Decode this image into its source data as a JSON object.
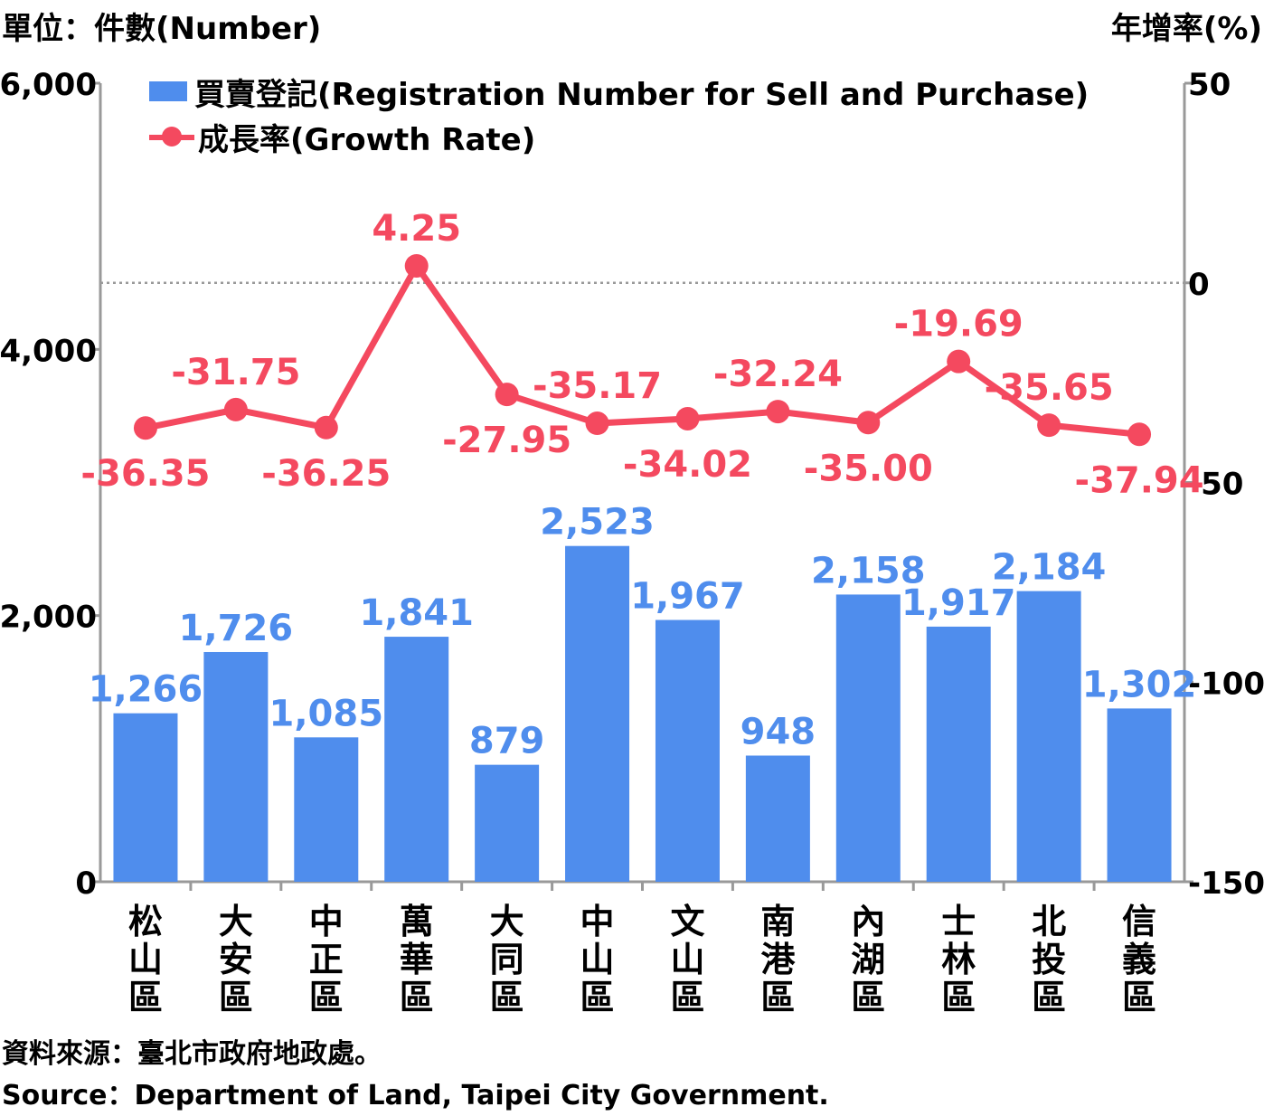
{
  "header": {
    "left_unit": "單位：件數(Number)",
    "right_unit": "年增率(%)"
  },
  "legend": {
    "bar_label": "買賣登記(Registration Number for Sell and Purchase)",
    "line_label": "成長率(Growth Rate)"
  },
  "footer": {
    "source_zh": "資料來源：臺北市政府地政處。",
    "source_en": "Source：Department of Land, Taipei City Government."
  },
  "colors": {
    "bar": "#4f8ded",
    "line": "#f4495f",
    "axis": "#999999",
    "zero_line": "#999999"
  },
  "chart_data": {
    "type": "bar",
    "categories": [
      "松山區",
      "大安區",
      "中正區",
      "萬華區",
      "大同區",
      "中山區",
      "文山區",
      "南港區",
      "內湖區",
      "士林區",
      "北投區",
      "信義區"
    ],
    "series": [
      {
        "name": "買賣登記(Registration Number for Sell and Purchase)",
        "type": "bar",
        "axis": "left",
        "values": [
          1266,
          1726,
          1085,
          1841,
          879,
          2523,
          1967,
          948,
          2158,
          1917,
          2184,
          1302
        ],
        "labels": [
          "1,266",
          "1,726",
          "1,085",
          "1,841",
          "879",
          "2,523",
          "1,967",
          "948",
          "2,158",
          "1,917",
          "2,184",
          "1,302"
        ]
      },
      {
        "name": "成長率(Growth Rate)",
        "type": "line",
        "axis": "right",
        "values": [
          -36.35,
          -31.75,
          -36.25,
          4.25,
          -27.95,
          -35.17,
          -34.02,
          -32.24,
          -35.0,
          -19.69,
          -35.65,
          -37.94
        ],
        "labels": [
          "-36.35",
          "-31.75",
          "-36.25",
          "4.25",
          "-27.95",
          "-35.17",
          "-34.02",
          "-32.24",
          "-35.00",
          "-19.69",
          "-35.65",
          "-37.94"
        ],
        "label_positions": [
          "below",
          "above",
          "below",
          "above",
          "below",
          "above",
          "below",
          "above",
          "below",
          "above",
          "above",
          "below"
        ]
      }
    ],
    "y_left": {
      "ylim": [
        0,
        6000
      ],
      "ticks": [
        0,
        2000,
        4000,
        6000
      ],
      "tick_labels": [
        "0",
        "2,000",
        "4,000",
        "6,000"
      ]
    },
    "y_right": {
      "ylim": [
        -150,
        50
      ],
      "ticks": [
        -150,
        -100,
        -50,
        0,
        50
      ],
      "tick_labels": [
        "-150",
        "-100",
        "-50",
        "0",
        "50"
      ]
    },
    "zero_reference_line": true,
    "grid": false,
    "legend_position": "top-left"
  }
}
